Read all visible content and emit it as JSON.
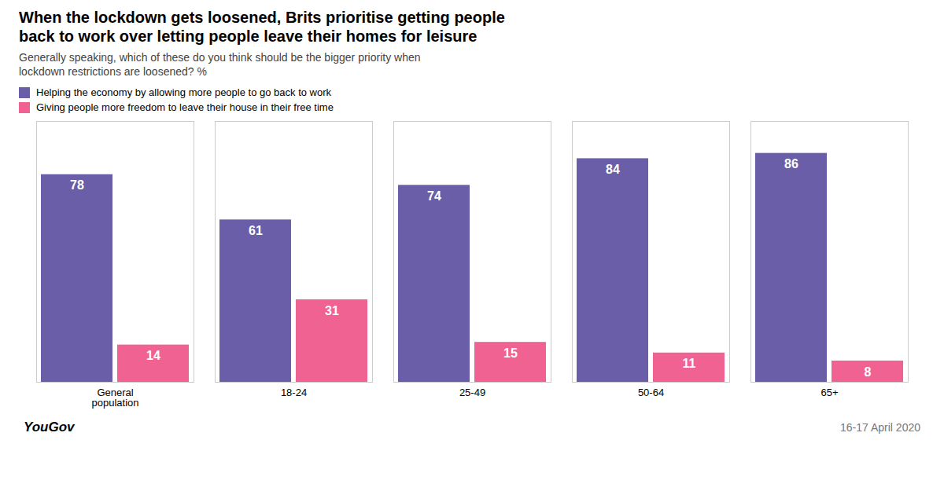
{
  "chart_data": {
    "type": "bar",
    "title": "When the lockdown gets loosened, Brits prioritise getting people\nback to work over letting people leave their homes for leisure",
    "subtitle": "Generally speaking, which of these do you think should be the bigger priority when\nlockdown restrictions are loosened? %",
    "categories": [
      "General\npopulation",
      "18-24",
      "25-49",
      "50-64",
      "65+"
    ],
    "series": [
      {
        "name": "Helping the economy by allowing more people to go back to work",
        "color": "#6B5EA8",
        "values": [
          78,
          61,
          74,
          84,
          86
        ]
      },
      {
        "name": "Giving people more freedom to leave their house in their free time",
        "color": "#F06292",
        "values": [
          14,
          31,
          15,
          11,
          8
        ]
      }
    ],
    "ylim": [
      0,
      98
    ],
    "tick_labels": "x",
    "grid": false,
    "legend": "top",
    "data_labels": true,
    "annotations": [
      "YouGov",
      "16-17 April 2020"
    ]
  }
}
